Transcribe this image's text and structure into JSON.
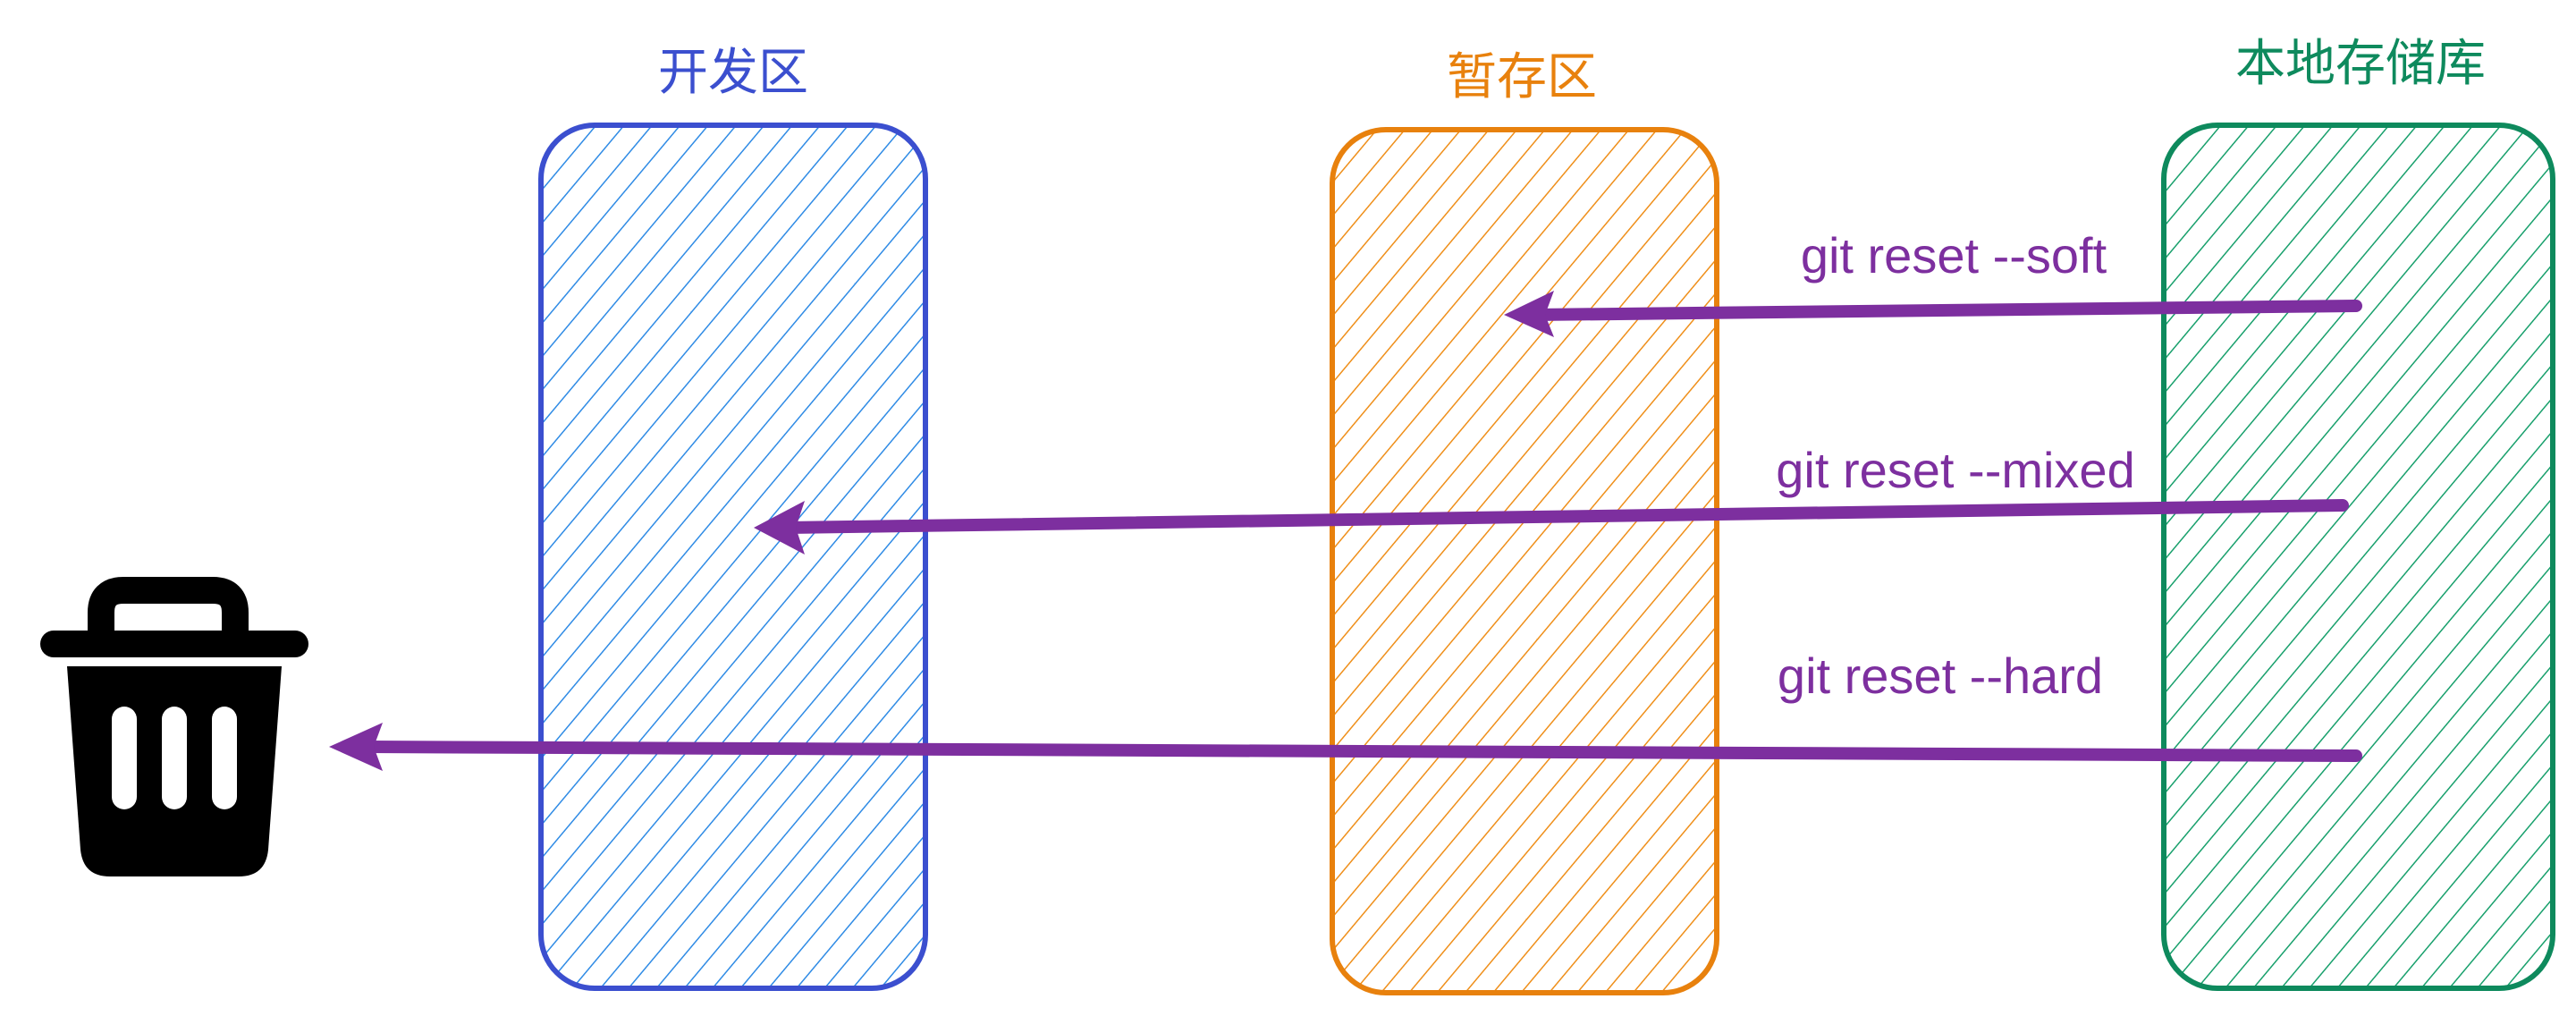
{
  "zones": [
    {
      "id": "dev",
      "label": "开发区",
      "color": "#3b4fcf",
      "hatch": "#2f8be5"
    },
    {
      "id": "stage",
      "label": "暂存区",
      "color": "#e8810d",
      "hatch": "#ef8f1a"
    },
    {
      "id": "repo",
      "label": "本地存储库",
      "color": "#0e8a5d",
      "hatch": "#18a06c"
    }
  ],
  "commands": [
    {
      "id": "soft",
      "label": "git reset --soft",
      "from": "repo",
      "to": "stage"
    },
    {
      "id": "mixed",
      "label": "git reset --mixed",
      "from": "repo",
      "to": "dev"
    },
    {
      "id": "hard",
      "label": "git reset --hard",
      "from": "repo",
      "to": "trash"
    }
  ],
  "arrow_color": "#7d2f9f",
  "trash": {
    "icon": "trash-icon"
  }
}
